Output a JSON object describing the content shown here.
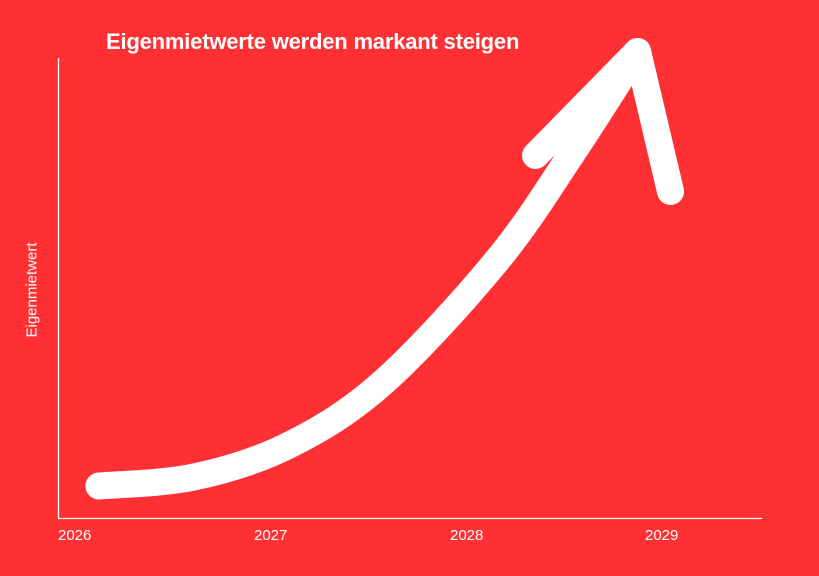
{
  "colors": {
    "background": "#FF3033",
    "foreground": "#FFFFFF"
  },
  "chart_data": {
    "type": "line",
    "title": "Eigenmietwerte werden markant steigen",
    "xlabel": "",
    "ylabel": "Eigenmietwert",
    "x": [
      "2026",
      "2027",
      "2028",
      "2029"
    ],
    "xlim": [
      2026,
      2029.5
    ],
    "ylim": [
      0,
      1
    ],
    "shape": "exponential-growth-arrow",
    "points": [
      {
        "x": 2026.1,
        "y": 0.02
      },
      {
        "x": 2026.6,
        "y": 0.04
      },
      {
        "x": 2027.1,
        "y": 0.11
      },
      {
        "x": 2027.6,
        "y": 0.25
      },
      {
        "x": 2028.2,
        "y": 0.52
      },
      {
        "x": 2028.6,
        "y": 0.76
      },
      {
        "x": 2028.95,
        "y": 0.99
      }
    ],
    "grid": false,
    "legend": "none",
    "y_tick_labels": false
  }
}
